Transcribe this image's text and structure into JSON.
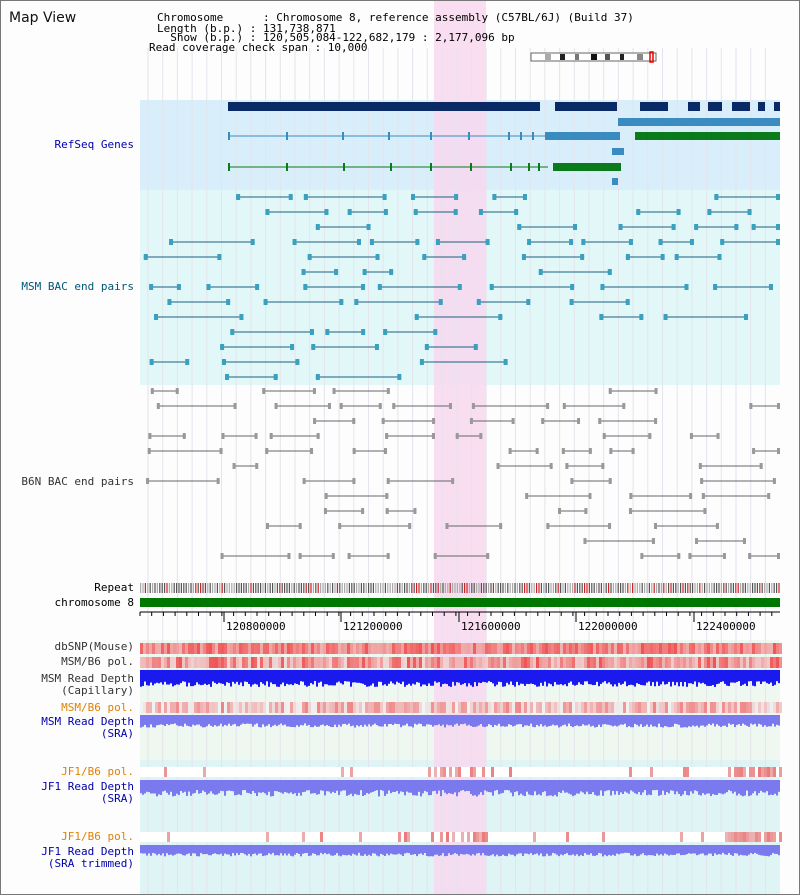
{
  "title": "Map View",
  "header": {
    "chromosome_line": "Chromosome      : Chromosome 8, reference assembly (C57BL/6J) (Build 37)",
    "length_line": "Length (b.p.) : 131,738,871",
    "show_line": "  Show (b.p.) : 120,505,084-122,682,179 : 2,177,096 bp",
    "coverage_line": "Read coverage check span : 10,000"
  },
  "tracks": {
    "refseq": "RefSeq Genes",
    "msm_bac": "MSM BAC end pairs",
    "b6n_bac": "B6N BAC end pairs",
    "repeat": "Repeat",
    "chromosome": "chromosome 8",
    "dbsnp": "dbSNP(Mouse)",
    "msm_b6_pol": "MSM/B6 pol.",
    "msm_depth_cap_1": "MSM Read Depth",
    "msm_depth_cap_2": "(Capillary)",
    "msm_b6_pol2": "MSM/B6 pol.",
    "msm_depth_sra_1": "MSM Read Depth",
    "msm_depth_sra_2": "(SRA)",
    "jf1_b6_pol": "JF1/B6 pol.",
    "jf1_depth_sra_1": "JF1 Read Depth",
    "jf1_depth_sra_2": "(SRA)",
    "jf1_b6_pol2": "JF1/B6 pol.",
    "jf1_depth_trim_1": "JF1 Read Depth",
    "jf1_depth_trim_2": "(SRA trimmed)"
  },
  "axis_ticks": [
    "120800000",
    "121200000",
    "121600000",
    "122000000",
    "122400000"
  ],
  "colors": {
    "refseq_bg": "#d8eefa",
    "msm_bg": "#e2f8f8",
    "highlight": "#f8d8f0",
    "gene_dark": "#0a2a66",
    "gene_mid": "#3a8cc0",
    "gene_green": "#0a7a1a",
    "chrom_green": "#007700",
    "depth_blue": "#1a1aee",
    "depth_violet": "#7a7aee",
    "snp_red": "#ee5555"
  }
}
